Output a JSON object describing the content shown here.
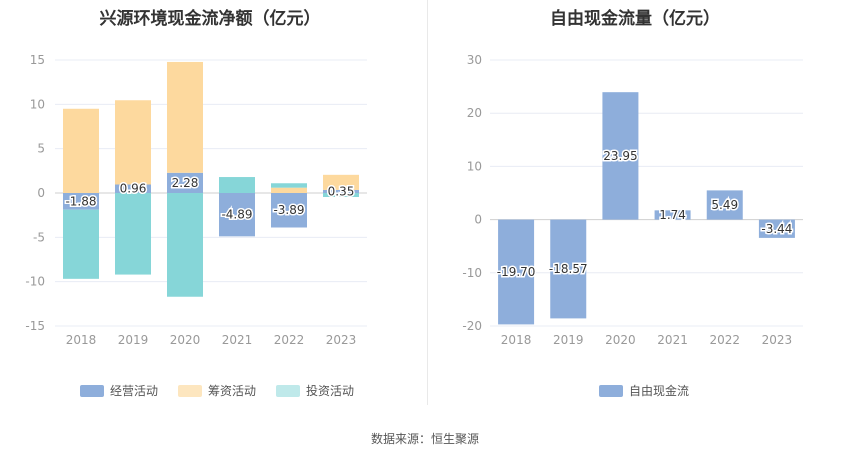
{
  "chart_data": [
    {
      "type": "bar",
      "title": "兴源环境现金流净额（亿元）",
      "categories": [
        "2018",
        "2019",
        "2020",
        "2021",
        "2022",
        "2023"
      ],
      "ylim": [
        -15,
        15
      ],
      "yticks": [
        "15",
        "10",
        "5",
        "0",
        "-5",
        "-10",
        "-15"
      ],
      "stacked": true,
      "series": [
        {
          "name": "经营活动",
          "color": "#8eaedb",
          "values": [
            -1.88,
            0.96,
            2.28,
            -4.89,
            -3.89,
            0.35
          ],
          "labels": [
            "-1.88",
            "0.96",
            "2.28",
            "-4.89",
            "-3.89",
            "0.35"
          ]
        },
        {
          "name": "筹资活动",
          "color": "#fdd99e",
          "values": [
            9.5,
            9.5,
            12.5,
            0,
            0.6,
            1.7
          ]
        },
        {
          "name": "投资活动",
          "color": "#86d6d8",
          "values": [
            -7.8,
            -9.2,
            -11.7,
            1.8,
            0.5,
            -0.45
          ]
        }
      ],
      "grid": true,
      "legend_position": "bottom"
    },
    {
      "type": "bar",
      "title": "自由现金流量（亿元）",
      "categories": [
        "2018",
        "2019",
        "2020",
        "2021",
        "2022",
        "2023"
      ],
      "ylim": [
        -20,
        30
      ],
      "yticks": [
        "30",
        "20",
        "10",
        "0",
        "-10",
        "-20"
      ],
      "series": [
        {
          "name": "自由现金流",
          "color": "#8eaedb",
          "values": [
            -19.7,
            -18.57,
            23.95,
            1.74,
            5.49,
            -3.44
          ],
          "labels": [
            "-19.70",
            "-18.57",
            "23.95",
            "1.74",
            "5.49",
            "-3.44"
          ]
        }
      ],
      "grid": true,
      "legend_position": "bottom"
    }
  ],
  "source": "数据来源：恒生聚源"
}
